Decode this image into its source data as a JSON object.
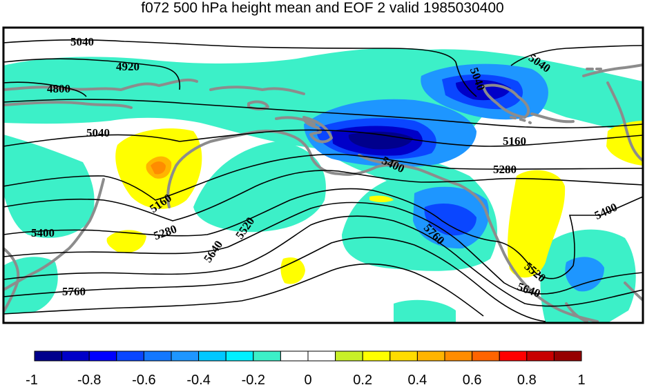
{
  "title": "f072 500 hPa height mean and EOF 2 valid 1985030400",
  "colorbar": {
    "ticks": [
      "-1",
      "-0.8",
      "-0.6",
      "-0.4",
      "-0.2",
      "0",
      "0.2",
      "0.4",
      "0.6",
      "0.8",
      "1"
    ],
    "colors": [
      "#00008c",
      "#0000c8",
      "#0000ff",
      "#0a46ff",
      "#1478ff",
      "#1e96ff",
      "#00c8ff",
      "#00f0ff",
      "#3cf0c8",
      "#ffffff",
      "#ffffff",
      "#c8f028",
      "#ffff00",
      "#ffdc00",
      "#ffb400",
      "#ff8c00",
      "#ff6400",
      "#ff0000",
      "#c80000",
      "#960000"
    ]
  },
  "contour_labels": [
    "5040",
    "4920",
    "4800",
    "5040",
    "5040",
    "5040",
    "5160",
    "5160",
    "5280",
    "5280",
    "5400",
    "5400",
    "5400",
    "5520",
    "5640",
    "5760",
    "5760",
    "5520",
    "5640"
  ],
  "anomaly_colors": {
    "weak_negative": "#3cf0c8",
    "moderate_negative": "#1e96ff",
    "strong_negative": "#0a46ff",
    "very_strong_negative": "#0000c8",
    "extreme_negative": "#00008c",
    "weak_positive": "#ffff00",
    "moderate_positive": "#ffb400",
    "strong_positive": "#ff8c00"
  },
  "coastline_color": "#8c8c8c"
}
